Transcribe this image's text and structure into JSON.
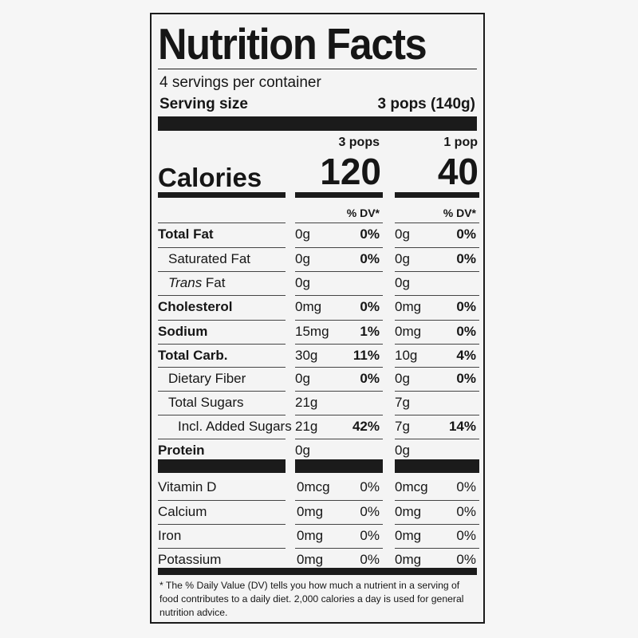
{
  "title": "Nutrition Facts",
  "servings_per_container": "4 servings per container",
  "serving_size_label": "Serving size",
  "serving_size_value": "3 pops (140g)",
  "columns": [
    {
      "header": "3 pops",
      "calories": "120",
      "dv_header": "% DV*"
    },
    {
      "header": "1 pop",
      "calories": "40",
      "dv_header": "% DV*"
    }
  ],
  "calories_label": "Calories",
  "nutrients": [
    {
      "name": "Total Fat",
      "bold": true,
      "indent": 0,
      "amounts": [
        "0g",
        "0g"
      ],
      "dvs": [
        "0%",
        "0%"
      ]
    },
    {
      "name": "Saturated Fat",
      "bold": false,
      "indent": 1,
      "amounts": [
        "0g",
        "0g"
      ],
      "dvs": [
        "0%",
        "0%"
      ]
    },
    {
      "name": "Trans",
      "suffix": " Fat",
      "italic_name": true,
      "bold": false,
      "indent": 1,
      "amounts": [
        "0g",
        "0g"
      ],
      "dvs": [
        "",
        ""
      ]
    },
    {
      "name": "Cholesterol",
      "bold": true,
      "indent": 0,
      "amounts": [
        "0mg",
        "0mg"
      ],
      "dvs": [
        "0%",
        "0%"
      ]
    },
    {
      "name": "Sodium",
      "bold": true,
      "indent": 0,
      "amounts": [
        "15mg",
        "0mg"
      ],
      "dvs": [
        "1%",
        "0%"
      ]
    },
    {
      "name": "Total Carb.",
      "bold": true,
      "indent": 0,
      "amounts": [
        "30g",
        "10g"
      ],
      "dvs": [
        "11%",
        "4%"
      ]
    },
    {
      "name": "Dietary Fiber",
      "bold": false,
      "indent": 1,
      "amounts": [
        "0g",
        "0g"
      ],
      "dvs": [
        "0%",
        "0%"
      ]
    },
    {
      "name": "Total Sugars",
      "bold": false,
      "indent": 1,
      "amounts": [
        "21g",
        "7g"
      ],
      "dvs": [
        "",
        ""
      ]
    },
    {
      "name": "Incl. Added Sugars",
      "bold": false,
      "indent": 2,
      "amounts": [
        "21g",
        "7g"
      ],
      "dvs": [
        "42%",
        "14%"
      ]
    },
    {
      "name": "Protein",
      "bold": true,
      "indent": 0,
      "amounts": [
        "0g",
        "0g"
      ],
      "dvs": [
        "",
        ""
      ]
    }
  ],
  "vitamins": [
    {
      "name": "Vitamin D",
      "amounts": [
        "0mcg",
        "0mcg"
      ],
      "dvs": [
        "0%",
        "0%"
      ]
    },
    {
      "name": "Calcium",
      "amounts": [
        "0mg",
        "0mg"
      ],
      "dvs": [
        "0%",
        "0%"
      ]
    },
    {
      "name": "Iron",
      "amounts": [
        "0mg",
        "0mg"
      ],
      "dvs": [
        "0%",
        "0%"
      ]
    },
    {
      "name": "Potassium",
      "amounts": [
        "0mg",
        "0mg"
      ],
      "dvs": [
        "0%",
        "0%"
      ]
    }
  ],
  "footnote": "* The % Daily Value (DV) tells you how much a nutrient in a serving of food contributes to a daily diet. 2,000 calories a day is used for general nutrition advice."
}
